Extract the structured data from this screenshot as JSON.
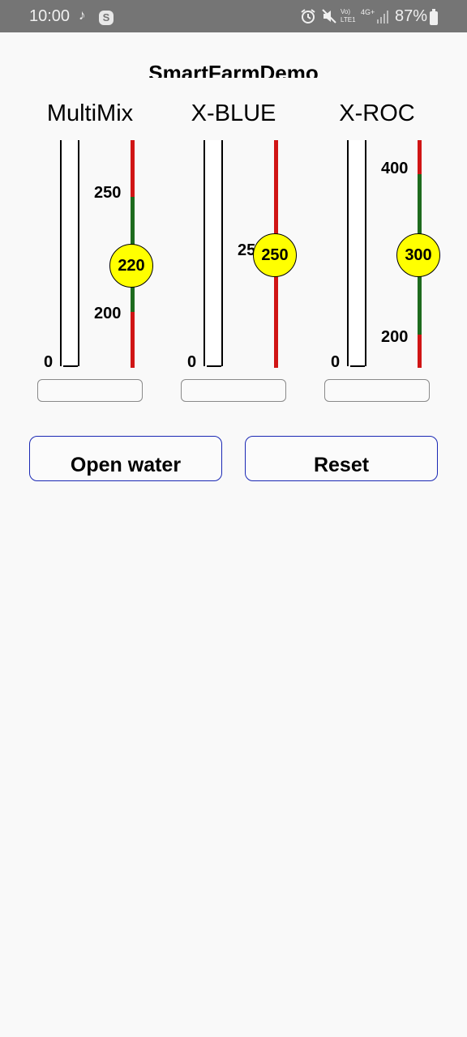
{
  "status_bar": {
    "time": "10:00",
    "notification_icons": [
      "tiktok-icon",
      "skype-icon"
    ],
    "system_icons": [
      "alarm-icon",
      "mute-icon",
      "volte-icon",
      "4g-icon",
      "signal-icon"
    ],
    "volte_text": "Vo) LTE1",
    "network_text": "4G+",
    "battery": "87%"
  },
  "app": {
    "title": "SmartFarmDemo"
  },
  "columns": [
    {
      "label": "MultiMix",
      "zero_label": "0",
      "tick_labels": [
        "250",
        "200"
      ],
      "knob_value": "220",
      "input_value": ""
    },
    {
      "label": "X-BLUE",
      "zero_label": "0",
      "tick_labels": [
        "25"
      ],
      "knob_value": "250",
      "input_value": ""
    },
    {
      "label": "X-ROC",
      "zero_label": "0",
      "tick_labels": [
        "400",
        "200"
      ],
      "knob_value": "300",
      "input_value": ""
    }
  ],
  "buttons": {
    "open_water": "Open water",
    "reset": "Reset"
  },
  "colors": {
    "status_bar_bg": "#757575",
    "background": "#f9f9f9",
    "range_ok": "#1e6b1e",
    "range_alarm": "#d01515",
    "knob": "#ffff00",
    "button_border": "#1a28b4"
  }
}
